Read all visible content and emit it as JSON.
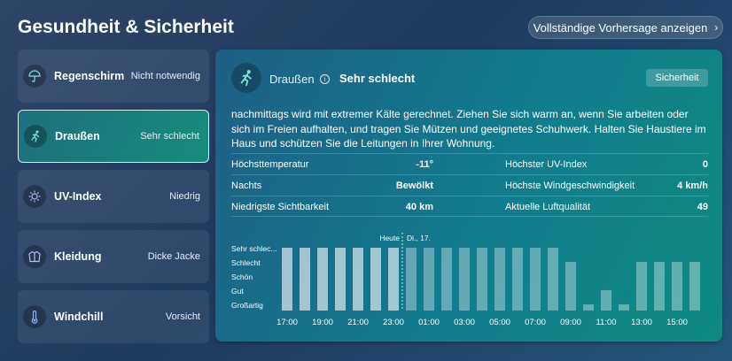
{
  "header": {
    "title": "Gesundheit & Sicherheit",
    "forecast_label": "Vollständige Vorhersage anzeigen"
  },
  "sidebar": {
    "items": [
      {
        "label": "Regenschirm",
        "value": "Nicht notwendig",
        "icon": "umbrella-icon"
      },
      {
        "label": "Draußen",
        "value": "Sehr schlecht",
        "icon": "running-person-icon"
      },
      {
        "label": "UV-Index",
        "value": "Niedrig",
        "icon": "sun-icon"
      },
      {
        "label": "Kleidung",
        "value": "Dicke Jacke",
        "icon": "jacket-icon"
      },
      {
        "label": "Windchill",
        "value": "Vorsicht",
        "icon": "thermometer-icon"
      }
    ]
  },
  "card": {
    "title": "Draußen",
    "status": "Sehr schlecht",
    "safety_label": "Sicherheit",
    "description": "nachmittags wird mit extremer Kälte gerechnet. Ziehen Sie sich warm an, wenn Sie arbeiten oder sich im Freien aufhalten, und tragen Sie Mützen und geeignetes Schuhwerk. Halten Sie Haustiere im Haus und schützen Sie die Leitungen in Ihrer Wohnung.",
    "stats": [
      {
        "label": "Höchsttemperatur",
        "value": "-11°",
        "label2": "Höchster UV-Index",
        "value2": "0"
      },
      {
        "label": "Nachts",
        "value": "Bewölkt",
        "label2": "Höchste Windgeschwindigkeit",
        "value2": "4 km/h"
      },
      {
        "label": "Niedrigste Sichtbarkeit",
        "value": "40 km",
        "label2": "Aktuelle Luftqualität",
        "value2": "49"
      }
    ]
  },
  "chart_data": {
    "type": "bar",
    "y_categories": [
      "Sehr schlec...",
      "Schlecht",
      "Schön",
      "Gut",
      "Großartig"
    ],
    "x_tick_labels": [
      "17:00",
      "19:00",
      "21:00",
      "23:00",
      "01:00",
      "03:00",
      "05:00",
      "07:00",
      "09:00",
      "11:00",
      "13:00",
      "15:00"
    ],
    "x": [
      "17:00",
      "18:00",
      "19:00",
      "20:00",
      "21:00",
      "22:00",
      "23:00",
      "00:00",
      "01:00",
      "02:00",
      "03:00",
      "04:00",
      "05:00",
      "06:00",
      "07:00",
      "08:00",
      "09:00",
      "10:00",
      "11:00",
      "12:00",
      "13:00",
      "14:00",
      "15:00",
      "16:00"
    ],
    "values": [
      5,
      5,
      5,
      5,
      5,
      5,
      5,
      5,
      5,
      5,
      5,
      5,
      5,
      5,
      5,
      5,
      4,
      1,
      2,
      1,
      4,
      4,
      4,
      4
    ],
    "markers": [
      {
        "label": "Heute",
        "after_index": 6
      },
      {
        "label": "Di., 17.",
        "after_index": 6
      }
    ],
    "highlight_color": "#ffffff",
    "bar_color_future": "rgba(255,255,255,0.35)",
    "bar_color_past": "rgba(255,255,255,0.6)"
  }
}
